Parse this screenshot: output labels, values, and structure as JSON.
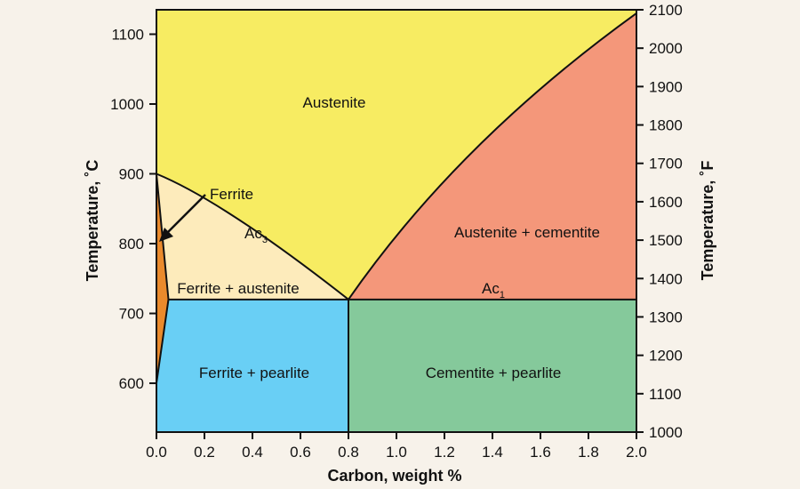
{
  "diagram": {
    "type": "phase-diagram",
    "x_axis": {
      "label": "Carbon, weight %",
      "range": [
        0.0,
        2.0
      ],
      "ticks": [
        "0.0",
        "0.2",
        "0.4",
        "0.6",
        "0.8",
        "1.0",
        "1.2",
        "1.4",
        "1.6",
        "1.8",
        "2.0"
      ]
    },
    "left_axis": {
      "label": "Temperature, ˚C",
      "range": [
        530,
        1135
      ],
      "ticks": [
        "600",
        "700",
        "800",
        "900",
        "1000",
        "1100"
      ]
    },
    "right_axis": {
      "label": "Temperature, ˚F",
      "range": [
        1000,
        2100
      ],
      "ticks": [
        "1000",
        "1100",
        "1200",
        "1300",
        "1400",
        "1500",
        "1600",
        "1700",
        "1800",
        "1900",
        "2000",
        "2100"
      ]
    },
    "regions": [
      {
        "id": "austenite",
        "label": "Austenite",
        "color": "#f7ec62"
      },
      {
        "id": "austenite-cementite",
        "label": "Austenite + cementite",
        "color": "#f4977a"
      },
      {
        "id": "ferrite-austenite",
        "label": "Ferrite + austenite",
        "color": "#fdebbb"
      },
      {
        "id": "ferrite",
        "label": "Ferrite",
        "color": "#ea8a2c"
      },
      {
        "id": "ferrite-pearlite",
        "label": "Ferrite + pearlite",
        "color": "#69cff5"
      },
      {
        "id": "cementite-pearlite",
        "label": "Cementite + pearlite",
        "color": "#85c99b"
      }
    ],
    "line_labels": {
      "ac3": {
        "main": "Ac",
        "sub": "3"
      },
      "ac1": {
        "main": "Ac",
        "sub": "1"
      }
    },
    "key_points": {
      "gamma_alpha_start": {
        "carbon": 0.0,
        "temp_c": 900
      },
      "eutectoid": {
        "carbon": 0.8,
        "temp_c": 720
      },
      "acm_end": {
        "carbon": 2.0,
        "temp_c": 1130
      },
      "ferrite_max": {
        "carbon": 0.05,
        "temp_c": 720
      },
      "ferrite_low": {
        "carbon": 0.0,
        "temp_c": 600
      }
    }
  }
}
